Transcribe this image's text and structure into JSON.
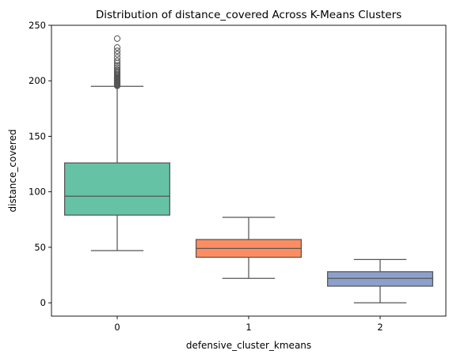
{
  "chart_data": {
    "type": "box",
    "title": "Distribution of distance_covered Across K-Means Clusters",
    "xlabel": "defensive_cluster_kmeans",
    "ylabel": "distance_covered",
    "ylim": [
      -12,
      250
    ],
    "yticks": [
      0,
      50,
      100,
      150,
      200,
      250
    ],
    "grid": false,
    "categories": [
      "0",
      "1",
      "2"
    ],
    "boxes": [
      {
        "category": "0",
        "color": "#66c2a5",
        "whisker_low": 47,
        "q1": 79,
        "median": 96,
        "q3": 126,
        "whisker_high": 195,
        "outliers": [
          195.5,
          196,
          196.5,
          197,
          197.5,
          198,
          198.5,
          199,
          199.5,
          200,
          200.5,
          201,
          201.5,
          202,
          202.5,
          203,
          204,
          205,
          206,
          207,
          208,
          209,
          210,
          212,
          214,
          216,
          218,
          221,
          224,
          227,
          230,
          238
        ]
      },
      {
        "category": "1",
        "color": "#fc8d62",
        "whisker_low": 22,
        "q1": 41,
        "median": 49,
        "q3": 57,
        "whisker_high": 77,
        "outliers": []
      },
      {
        "category": "2",
        "color": "#8da0cb",
        "whisker_low": 0,
        "q1": 15,
        "median": 22,
        "q3": 28,
        "whisker_high": 39,
        "outliers": []
      }
    ]
  }
}
